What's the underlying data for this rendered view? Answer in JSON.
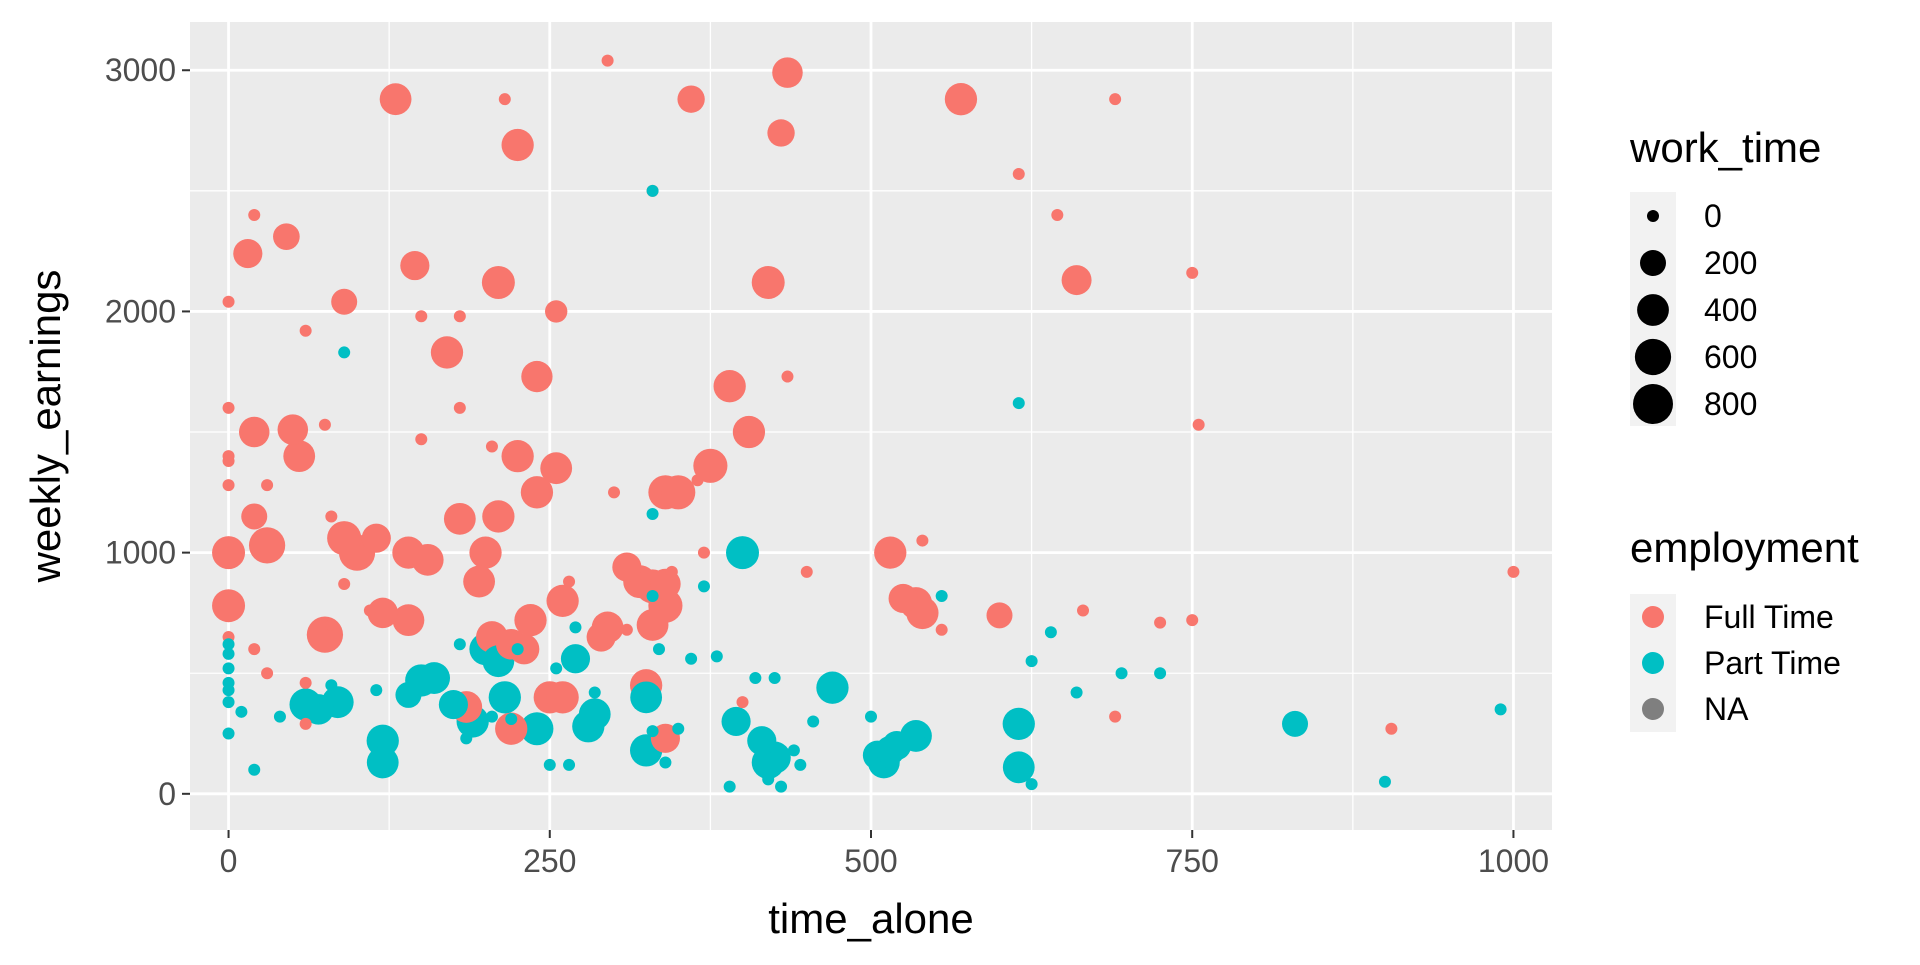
{
  "chart_data": {
    "type": "scatter",
    "title": "",
    "xlabel": "time_alone",
    "ylabel": "weekly_earnings",
    "xlim": [
      -30,
      1030
    ],
    "ylim": [
      -150,
      3200
    ],
    "x_ticks": [
      0,
      250,
      500,
      750,
      1000
    ],
    "x_tick_labels": [
      "0",
      "250",
      "500",
      "750",
      "1000"
    ],
    "y_ticks": [
      0,
      1000,
      2000,
      3000
    ],
    "y_tick_labels": [
      "0",
      "1000",
      "2000",
      "3000"
    ],
    "grid": true,
    "size_legend": {
      "title": "work_time",
      "entries": [
        {
          "label": "0",
          "value": 0
        },
        {
          "label": "200",
          "value": 200
        },
        {
          "label": "400",
          "value": 400
        },
        {
          "label": "600",
          "value": 600
        },
        {
          "label": "800",
          "value": 800
        }
      ]
    },
    "color_legend": {
      "title": "employment",
      "entries": [
        {
          "label": "Full Time",
          "color": "#F8766D"
        },
        {
          "label": "Part Time",
          "color": "#00BFC4"
        },
        {
          "label": "NA",
          "color": "#7F7F7F"
        }
      ]
    },
    "legend_position": "right",
    "series": [
      {
        "name": "Full Time",
        "color": "#F8766D",
        "points": [
          [
            295,
            3040,
            0
          ],
          [
            435,
            2990,
            350
          ],
          [
            130,
            2880,
            400
          ],
          [
            215,
            2880,
            0
          ],
          [
            360,
            2880,
            240
          ],
          [
            570,
            2880,
            420
          ],
          [
            690,
            2880,
            0
          ],
          [
            430,
            2740,
            240
          ],
          [
            225,
            2690,
            420
          ],
          [
            330,
            2500,
            0
          ],
          [
            20,
            2400,
            0
          ],
          [
            615,
            2570,
            0
          ],
          [
            645,
            2400,
            0
          ],
          [
            45,
            2310,
            220
          ],
          [
            15,
            2240,
            300
          ],
          [
            145,
            2190,
            300
          ],
          [
            210,
            2120,
            450
          ],
          [
            420,
            2120,
            450
          ],
          [
            660,
            2130,
            330
          ],
          [
            750,
            2160,
            0
          ],
          [
            0,
            2040,
            0
          ],
          [
            90,
            2040,
            200
          ],
          [
            255,
            2000,
            110
          ],
          [
            150,
            1980,
            0
          ],
          [
            180,
            1980,
            0
          ],
          [
            60,
            1920,
            0
          ],
          [
            170,
            1830,
            420
          ],
          [
            240,
            1730,
            380
          ],
          [
            435,
            1730,
            0
          ],
          [
            390,
            1690,
            420
          ],
          [
            0,
            1600,
            0
          ],
          [
            180,
            1600,
            0
          ],
          [
            405,
            1500,
            420
          ],
          [
            755,
            1530,
            0
          ],
          [
            20,
            1500,
            350
          ],
          [
            50,
            1510,
            350
          ],
          [
            75,
            1530,
            0
          ],
          [
            150,
            1470,
            0
          ],
          [
            205,
            1440,
            0
          ],
          [
            0,
            1400,
            0
          ],
          [
            0,
            1380,
            0
          ],
          [
            55,
            1400,
            400
          ],
          [
            225,
            1400,
            420
          ],
          [
            255,
            1350,
            400
          ],
          [
            375,
            1360,
            500
          ],
          [
            0,
            1280,
            0
          ],
          [
            30,
            1280,
            0
          ],
          [
            240,
            1250,
            420
          ],
          [
            300,
            1250,
            0
          ],
          [
            340,
            1250,
            500
          ],
          [
            350,
            1250,
            500
          ],
          [
            365,
            1300,
            0
          ],
          [
            80,
            1150,
            0
          ],
          [
            20,
            1150,
            200
          ],
          [
            180,
            1140,
            400
          ],
          [
            210,
            1150,
            420
          ],
          [
            30,
            1030,
            600
          ],
          [
            90,
            1060,
            500
          ],
          [
            100,
            1000,
            600
          ],
          [
            115,
            1060,
            300
          ],
          [
            140,
            1000,
            420
          ],
          [
            155,
            970,
            400
          ],
          [
            200,
            1000,
            420
          ],
          [
            0,
            1000,
            450
          ],
          [
            370,
            1000,
            0
          ],
          [
            515,
            1000,
            420
          ],
          [
            540,
            1050,
            0
          ],
          [
            195,
            880,
            400
          ],
          [
            310,
            940,
            300
          ],
          [
            320,
            880,
            450
          ],
          [
            330,
            860,
            500
          ],
          [
            340,
            870,
            350
          ],
          [
            345,
            920,
            0
          ],
          [
            450,
            920,
            0
          ],
          [
            90,
            870,
            0
          ],
          [
            265,
            880,
            0
          ],
          [
            0,
            780,
            450
          ],
          [
            75,
            660,
            600
          ],
          [
            80,
            700,
            0
          ],
          [
            110,
            760,
            0
          ],
          [
            120,
            750,
            350
          ],
          [
            140,
            720,
            400
          ],
          [
            205,
            650,
            400
          ],
          [
            235,
            720,
            420
          ],
          [
            220,
            620,
            350
          ],
          [
            230,
            600,
            350
          ],
          [
            260,
            800,
            420
          ],
          [
            290,
            650,
            300
          ],
          [
            295,
            690,
            400
          ],
          [
            310,
            680,
            0
          ],
          [
            330,
            700,
            400
          ],
          [
            340,
            780,
            500
          ],
          [
            0,
            650,
            0
          ],
          [
            20,
            600,
            0
          ],
          [
            30,
            500,
            0
          ],
          [
            60,
            460,
            0
          ],
          [
            60,
            290,
            0
          ],
          [
            185,
            360,
            400
          ],
          [
            220,
            270,
            420
          ],
          [
            250,
            400,
            420
          ],
          [
            260,
            400,
            420
          ],
          [
            325,
            450,
            420
          ],
          [
            340,
            230,
            300
          ],
          [
            400,
            380,
            0
          ],
          [
            525,
            810,
            300
          ],
          [
            535,
            790,
            420
          ],
          [
            540,
            750,
            420
          ],
          [
            555,
            680,
            0
          ],
          [
            600,
            740,
            200
          ],
          [
            665,
            760,
            0
          ],
          [
            690,
            320,
            0
          ],
          [
            725,
            710,
            0
          ],
          [
            750,
            720,
            0
          ],
          [
            905,
            270,
            0
          ],
          [
            1000,
            920,
            0
          ]
        ]
      },
      {
        "name": "Part Time",
        "color": "#00BFC4",
        "points": [
          [
            330,
            2500,
            0
          ],
          [
            90,
            1830,
            0
          ],
          [
            615,
            1620,
            0
          ],
          [
            330,
            1160,
            0
          ],
          [
            400,
            1000,
            450
          ],
          [
            370,
            860,
            0
          ],
          [
            555,
            820,
            0
          ],
          [
            330,
            820,
            0
          ],
          [
            270,
            690,
            0
          ],
          [
            640,
            670,
            0
          ],
          [
            0,
            620,
            0
          ],
          [
            0,
            580,
            0
          ],
          [
            0,
            520,
            0
          ],
          [
            180,
            620,
            0
          ],
          [
            200,
            600,
            420
          ],
          [
            210,
            550,
            400
          ],
          [
            225,
            600,
            0
          ],
          [
            255,
            520,
            0
          ],
          [
            270,
            560,
            300
          ],
          [
            335,
            600,
            0
          ],
          [
            360,
            560,
            0
          ],
          [
            380,
            570,
            0
          ],
          [
            0,
            460,
            0
          ],
          [
            0,
            430,
            0
          ],
          [
            0,
            380,
            0
          ],
          [
            0,
            250,
            0
          ],
          [
            10,
            340,
            0
          ],
          [
            40,
            320,
            0
          ],
          [
            60,
            370,
            420
          ],
          [
            70,
            350,
            350
          ],
          [
            75,
            380,
            0
          ],
          [
            80,
            450,
            0
          ],
          [
            85,
            380,
            400
          ],
          [
            115,
            430,
            0
          ],
          [
            140,
            410,
            200
          ],
          [
            150,
            470,
            420
          ],
          [
            160,
            480,
            400
          ],
          [
            175,
            370,
            300
          ],
          [
            190,
            300,
            420
          ],
          [
            205,
            320,
            0
          ],
          [
            215,
            400,
            420
          ],
          [
            220,
            310,
            0
          ],
          [
            240,
            270,
            450
          ],
          [
            250,
            120,
            0
          ],
          [
            265,
            120,
            0
          ],
          [
            280,
            280,
            420
          ],
          [
            285,
            330,
            400
          ],
          [
            285,
            420,
            0
          ],
          [
            325,
            400,
            400
          ],
          [
            325,
            180,
            420
          ],
          [
            330,
            260,
            0
          ],
          [
            340,
            130,
            0
          ],
          [
            350,
            270,
            0
          ],
          [
            395,
            300,
            300
          ],
          [
            410,
            480,
            0
          ],
          [
            415,
            220,
            300
          ],
          [
            420,
            130,
            450
          ],
          [
            425,
            150,
            420
          ],
          [
            430,
            30,
            0
          ],
          [
            440,
            180,
            0
          ],
          [
            445,
            120,
            0
          ],
          [
            455,
            300,
            0
          ],
          [
            470,
            440,
            420
          ],
          [
            500,
            320,
            0
          ],
          [
            505,
            160,
            300
          ],
          [
            510,
            130,
            400
          ],
          [
            515,
            180,
            300
          ],
          [
            520,
            200,
            300
          ],
          [
            535,
            240,
            400
          ],
          [
            615,
            290,
            420
          ],
          [
            615,
            110,
            400
          ],
          [
            625,
            40,
            0
          ],
          [
            625,
            550,
            0
          ],
          [
            660,
            420,
            0
          ],
          [
            695,
            500,
            0
          ],
          [
            725,
            500,
            0
          ],
          [
            830,
            290,
            200
          ],
          [
            900,
            50,
            0
          ],
          [
            990,
            350,
            0
          ],
          [
            20,
            100,
            0
          ],
          [
            120,
            220,
            420
          ],
          [
            120,
            130,
            400
          ],
          [
            185,
            230,
            0
          ],
          [
            390,
            30,
            0
          ],
          [
            420,
            60,
            0
          ],
          [
            425,
            480,
            0
          ],
          [
            540,
            210,
            0
          ]
        ]
      }
    ]
  }
}
